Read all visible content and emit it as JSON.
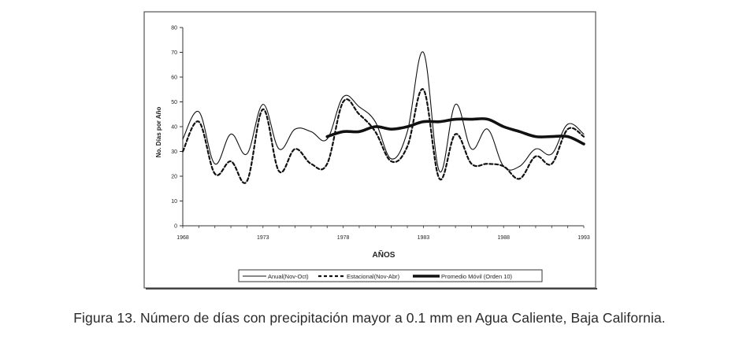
{
  "chart_data": {
    "type": "line",
    "xlabel": "AÑOS",
    "ylabel": "No. Días por Año",
    "xlim": [
      1968,
      1993
    ],
    "ylim": [
      0,
      80
    ],
    "x_ticks": [
      1968,
      1973,
      1978,
      1983,
      1988,
      1993
    ],
    "y_ticks": [
      0,
      10,
      20,
      30,
      40,
      50,
      60,
      70,
      80
    ],
    "x": [
      1968,
      1969,
      1970,
      1971,
      1972,
      1973,
      1974,
      1975,
      1976,
      1977,
      1978,
      1979,
      1980,
      1981,
      1982,
      1983,
      1984,
      1985,
      1986,
      1987,
      1988,
      1989,
      1990,
      1991,
      1992,
      1993
    ],
    "series": [
      {
        "name": "Anual(Nov-Oct)",
        "style": "solid-thin",
        "values": [
          35,
          46,
          25,
          37,
          29,
          49,
          31,
          39,
          38,
          35,
          52,
          48,
          42,
          27,
          38,
          70,
          22,
          49,
          31,
          39,
          24,
          24,
          31,
          29,
          41,
          37
        ]
      },
      {
        "name": "Estacional(Nov-Abr)",
        "style": "dashed",
        "values": [
          30,
          42,
          21,
          26,
          18,
          47,
          22,
          31,
          25,
          25,
          50,
          45,
          38,
          26,
          32,
          55,
          19,
          37,
          25,
          25,
          24,
          19,
          28,
          25,
          39,
          36
        ]
      },
      {
        "name": "Promedio Móvil (Orden 10)",
        "style": "solid-thick",
        "values": [
          null,
          null,
          null,
          null,
          null,
          null,
          null,
          null,
          null,
          36,
          38,
          38,
          40,
          39,
          40,
          42,
          42,
          43,
          43,
          43,
          40,
          38,
          36,
          36,
          36,
          33
        ]
      }
    ],
    "legend": [
      {
        "label": "Anual(Nov-Oct)"
      },
      {
        "label": "Estacional(Nov-Abr)"
      },
      {
        "label": "Promedio Móvil (Orden 10)"
      }
    ]
  },
  "caption": "Figura 13. Número de días con precipitación mayor a 0.1 mm en Agua Caliente, Baja California."
}
